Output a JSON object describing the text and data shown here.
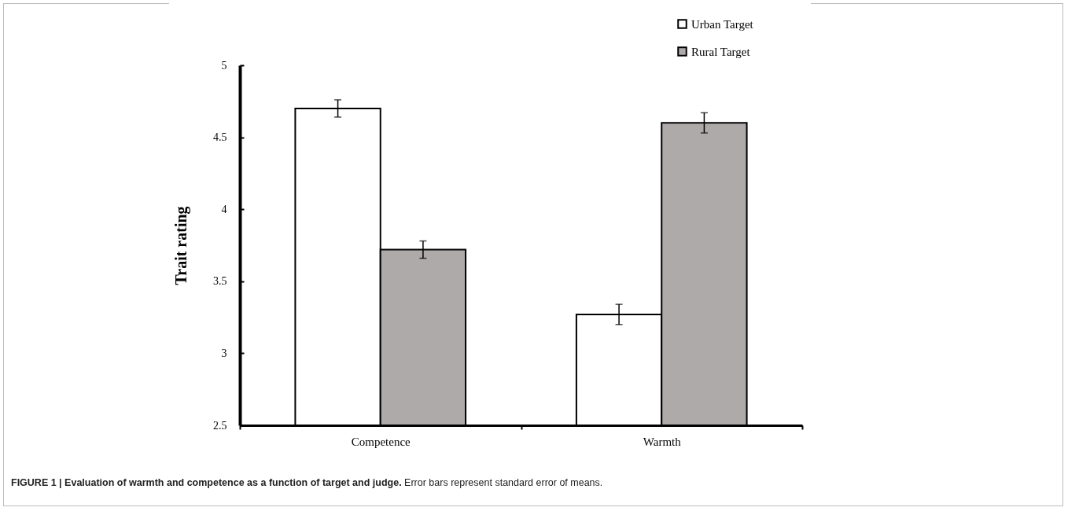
{
  "chart_data": {
    "type": "bar",
    "title": "FIGURE 1 | Evaluation of warmth and competence as a function of target and judge.",
    "annotations": [
      "Error bars represent standard error of means."
    ],
    "ylabel": "Trait rating",
    "categories": [
      "Competence",
      "Warmth"
    ],
    "series": [
      {
        "name": "Urban Target",
        "color": "#ffffff",
        "values": [
          4.7,
          3.27
        ],
        "errors": [
          0.06,
          0.07
        ]
      },
      {
        "name": "Rural Target",
        "color": "#aeaaaa",
        "values": [
          3.72,
          4.6
        ],
        "errors": [
          0.06,
          0.07
        ]
      }
    ],
    "ylim": [
      2.5,
      5
    ],
    "yticks": [
      2.5,
      3,
      3.5,
      4,
      4.5,
      5
    ],
    "grid": false,
    "legend": "top right"
  }
}
